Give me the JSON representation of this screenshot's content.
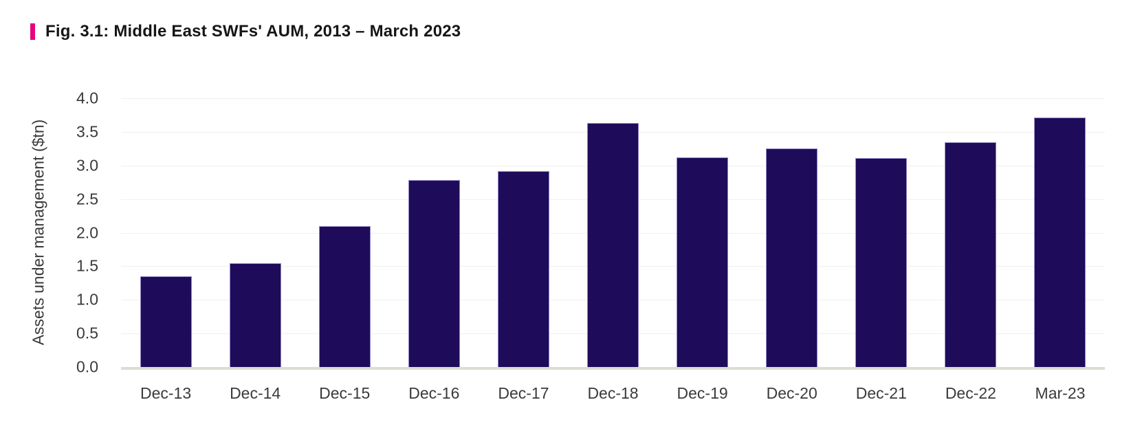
{
  "figure": {
    "colors": {
      "accent": "#e5067e",
      "bar_fill": "#1e0c5a",
      "bar_edge": "rgba(169, 157, 219, 0.85)",
      "gridline": "#f0efee",
      "axis_line": "#dedbd6",
      "tick_text": "#3a3a3a",
      "title_text": "#161616"
    }
  },
  "chart_data": {
    "type": "bar",
    "title": "Fig. 3.1: Middle East SWFs' AUM, 2013 – March 2023",
    "xlabel": "",
    "ylabel": "Assets under management ($tn)",
    "categories": [
      "Dec-13",
      "Dec-14",
      "Dec-15",
      "Dec-16",
      "Dec-17",
      "Dec-18",
      "Dec-19",
      "Dec-20",
      "Dec-21",
      "Dec-22",
      "Mar-23"
    ],
    "values": [
      1.35,
      1.55,
      2.1,
      2.78,
      2.92,
      3.63,
      3.12,
      3.25,
      3.11,
      3.35,
      3.71
    ],
    "ylim": [
      0,
      4.0
    ],
    "yticks": [
      0.0,
      0.5,
      1.0,
      1.5,
      2.0,
      2.5,
      3.0,
      3.5,
      4.0
    ],
    "ytick_labels": [
      "0.0",
      "0.5",
      "1.0",
      "1.5",
      "2.0",
      "2.5",
      "3.0",
      "3.5",
      "4.0"
    ],
    "grid": "horizontal",
    "legend": "none"
  }
}
